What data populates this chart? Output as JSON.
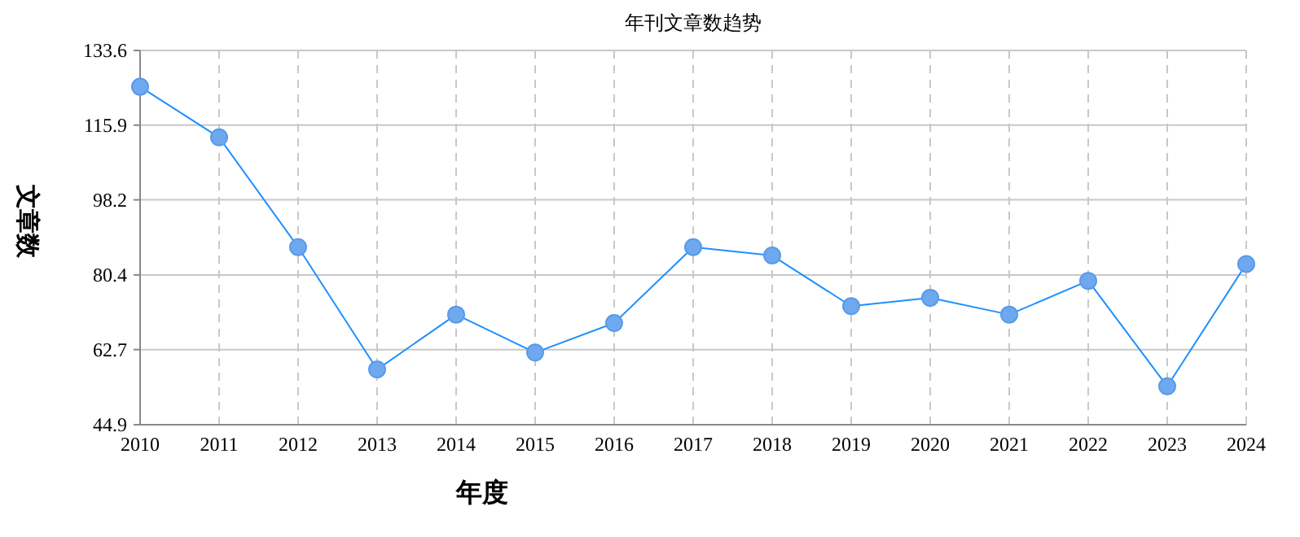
{
  "chart_data": {
    "type": "line",
    "title": "年刊文章数趋势",
    "xlabel": "年度",
    "ylabel": "文章数",
    "categories": [
      "2010",
      "2011",
      "2012",
      "2013",
      "2014",
      "2015",
      "2016",
      "2017",
      "2018",
      "2019",
      "2020",
      "2021",
      "2022",
      "2023",
      "2024"
    ],
    "series": [
      {
        "color": "#1e90ff",
        "values": [
          125,
          113,
          87,
          58,
          71,
          62,
          69,
          87,
          85,
          73,
          75,
          71,
          79,
          54,
          83
        ]
      }
    ],
    "ylim": [
      44.9,
      133.6
    ],
    "yticks": [
      133.6,
      115.9,
      98.2,
      80.4,
      62.7,
      44.9
    ],
    "grid": true,
    "marker": "circle",
    "line_style": "solid"
  }
}
